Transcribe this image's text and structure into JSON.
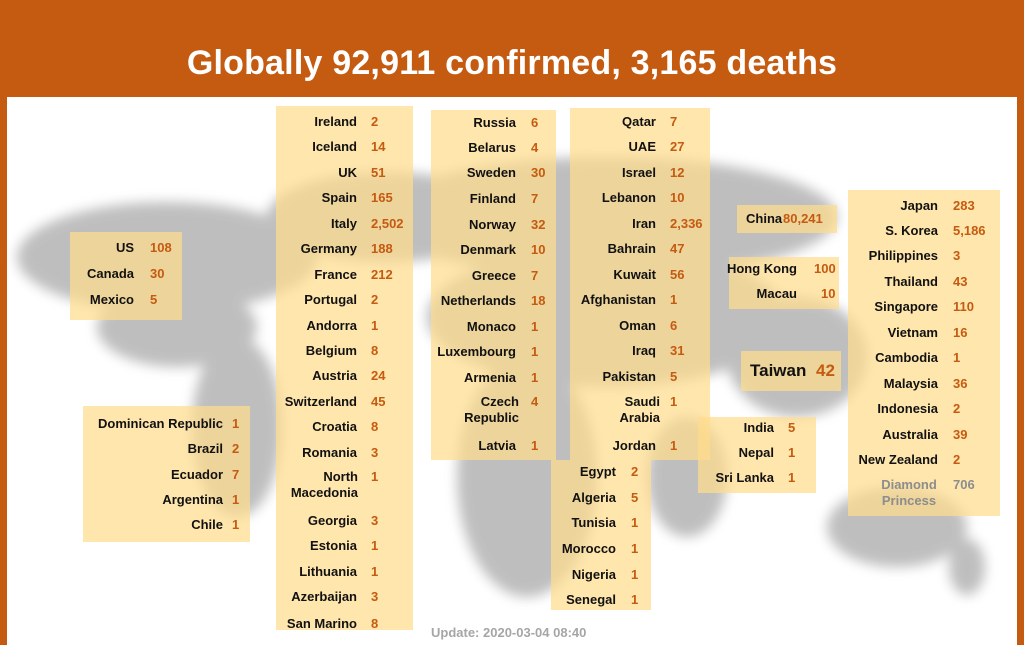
{
  "header": {
    "title": "Globally 92,911 confirmed, 3,165 deaths"
  },
  "footer": {
    "update": "Update:  2020-03-04 08:40"
  },
  "colors": {
    "accent": "#c55a11",
    "box": "#ffdc8c",
    "map": "#7f7f7f"
  },
  "americas_north": [
    {
      "name": "US",
      "count": "108"
    },
    {
      "name": "Canada",
      "count": "30"
    },
    {
      "name": "Mexico",
      "count": "5"
    }
  ],
  "americas_south": [
    {
      "name": "Dominican Republic",
      "count": "1"
    },
    {
      "name": "Brazil",
      "count": "2"
    },
    {
      "name": "Ecuador",
      "count": "7"
    },
    {
      "name": "Argentina",
      "count": "1"
    },
    {
      "name": "Chile",
      "count": "1"
    }
  ],
  "europe_west": [
    {
      "name": "Ireland",
      "count": "2"
    },
    {
      "name": "Iceland",
      "count": "14"
    },
    {
      "name": "UK",
      "count": "51"
    },
    {
      "name": "Spain",
      "count": "165"
    },
    {
      "name": "Italy",
      "count": "2,502"
    },
    {
      "name": "Germany",
      "count": "188"
    },
    {
      "name": "France",
      "count": "212"
    },
    {
      "name": "Portugal",
      "count": "2"
    },
    {
      "name": "Andorra",
      "count": "1"
    },
    {
      "name": "Belgium",
      "count": "8"
    },
    {
      "name": "Austria",
      "count": "24"
    },
    {
      "name": "Switzerland",
      "count": "45"
    },
    {
      "name": "Croatia",
      "count": "8"
    },
    {
      "name": "Romania",
      "count": "3"
    },
    {
      "name": "North Macedonia",
      "count": "1"
    },
    {
      "name": "Georgia",
      "count": "3"
    },
    {
      "name": "Estonia",
      "count": "1"
    },
    {
      "name": "Lithuania",
      "count": "1"
    },
    {
      "name": "Azerbaijan",
      "count": "3"
    },
    {
      "name": "San Marino",
      "count": "8"
    }
  ],
  "europe_north": [
    {
      "name": "Russia",
      "count": "6"
    },
    {
      "name": "Belarus",
      "count": "4"
    },
    {
      "name": "Sweden",
      "count": "30"
    },
    {
      "name": "Finland",
      "count": "7"
    },
    {
      "name": "Norway",
      "count": "32"
    },
    {
      "name": "Denmark",
      "count": "10"
    },
    {
      "name": "Greece",
      "count": "7"
    },
    {
      "name": "Netherlands",
      "count": "18"
    },
    {
      "name": "Monaco",
      "count": "1"
    },
    {
      "name": "Luxembourg",
      "count": "1"
    },
    {
      "name": "Armenia",
      "count": "1"
    },
    {
      "name": "Czech Republic",
      "count": "4"
    },
    {
      "name": "Latvia",
      "count": "1"
    }
  ],
  "middle_east": [
    {
      "name": "Qatar",
      "count": "7"
    },
    {
      "name": "UAE",
      "count": "27"
    },
    {
      "name": "Israel",
      "count": "12"
    },
    {
      "name": "Lebanon",
      "count": "10"
    },
    {
      "name": "Iran",
      "count": "2,336"
    },
    {
      "name": "Bahrain",
      "count": "47"
    },
    {
      "name": "Kuwait",
      "count": "56"
    },
    {
      "name": "Afghanistan",
      "count": "1"
    },
    {
      "name": "Oman",
      "count": "6"
    },
    {
      "name": "Iraq",
      "count": "31"
    },
    {
      "name": "Pakistan",
      "count": "5"
    },
    {
      "name": "Saudi Arabia",
      "count": "1"
    },
    {
      "name": "Jordan",
      "count": "1"
    }
  ],
  "africa": [
    {
      "name": "Egypt",
      "count": "2"
    },
    {
      "name": "Algeria",
      "count": "5"
    },
    {
      "name": "Tunisia",
      "count": "1"
    },
    {
      "name": "Morocco",
      "count": "1"
    },
    {
      "name": "Nigeria",
      "count": "1"
    },
    {
      "name": "Senegal",
      "count": "1"
    }
  ],
  "south_asia": [
    {
      "name": "India",
      "count": "5"
    },
    {
      "name": "Nepal",
      "count": "1"
    },
    {
      "name": "Sri Lanka",
      "count": "1"
    }
  ],
  "china": [
    {
      "name": "China",
      "count": "80,241"
    }
  ],
  "hk_macau": [
    {
      "name": "Hong Kong",
      "count": "100"
    },
    {
      "name": "Macau",
      "count": "10"
    }
  ],
  "taiwan": {
    "name": "Taiwan",
    "count": "42"
  },
  "asia_pacific": [
    {
      "name": "Japan",
      "count": "283"
    },
    {
      "name": "S. Korea",
      "count": "5,186"
    },
    {
      "name": "Philippines",
      "count": "3"
    },
    {
      "name": "Thailand",
      "count": "43"
    },
    {
      "name": "Singapore",
      "count": "110"
    },
    {
      "name": "Vietnam",
      "count": "16"
    },
    {
      "name": "Cambodia",
      "count": "1"
    },
    {
      "name": "Malaysia",
      "count": "36"
    },
    {
      "name": "Indonesia",
      "count": "2"
    },
    {
      "name": "Australia",
      "count": "39"
    },
    {
      "name": "New Zealand",
      "count": "2"
    },
    {
      "name": "Diamond Princess",
      "count": "706"
    }
  ]
}
